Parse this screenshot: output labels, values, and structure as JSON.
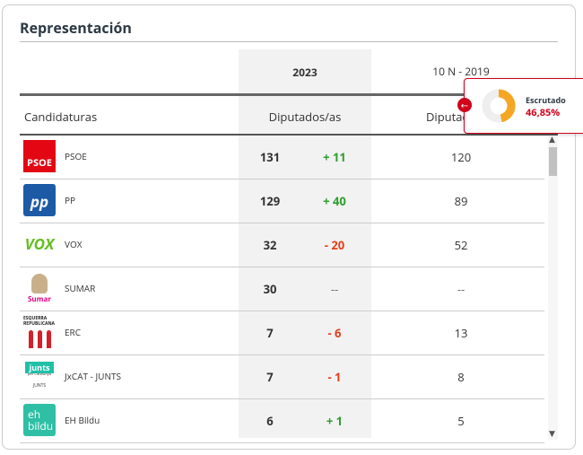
{
  "title": "Representación",
  "header": {
    "year_current": "2023",
    "year_previous": "10 N - 2019",
    "col_party": "Candidaturas",
    "col_seats": "Diputados/as",
    "col_seats_prev": "Diputad"
  },
  "popup": {
    "label": "Escrutado",
    "value": 46.85,
    "value_label": "46,85%"
  },
  "rows": [
    {
      "name": "PSOE",
      "logo": [
        "PSOE"
      ],
      "seats": 131,
      "change": "+ 11",
      "seats_prev": "120"
    },
    {
      "name": "PP",
      "logo": [
        "pp"
      ],
      "seats": 129,
      "change": "+ 40",
      "seats_prev": "89"
    },
    {
      "name": "VOX",
      "logo": [
        "VOX"
      ],
      "seats": 32,
      "change": "- 20",
      "seats_prev": "52"
    },
    {
      "name": "SUMAR",
      "logo": [
        "Sumar"
      ],
      "seats": 30,
      "change": "--",
      "seats_prev": "--"
    },
    {
      "name": "ERC",
      "logo": [
        "ESQUERRA",
        "REPUBLICANA"
      ],
      "seats": 7,
      "change": "- 6",
      "seats_prev": "13"
    },
    {
      "name": "JxCAT - JUNTS",
      "logo": [
        "junts",
        "per Catalunya",
        "JUNTS"
      ],
      "seats": 7,
      "change": "- 1",
      "seats_prev": "8"
    },
    {
      "name": "EH Bildu",
      "logo": [
        "eh",
        "bildu"
      ],
      "seats": 6,
      "change": "+ 1",
      "seats_prev": "5"
    }
  ]
}
